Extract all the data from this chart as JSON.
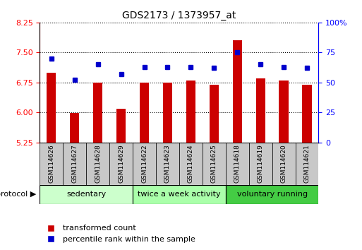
{
  "title": "GDS2173 / 1373957_at",
  "samples": [
    "GSM114626",
    "GSM114627",
    "GSM114628",
    "GSM114629",
    "GSM114622",
    "GSM114623",
    "GSM114624",
    "GSM114625",
    "GSM114618",
    "GSM114619",
    "GSM114620",
    "GSM114621"
  ],
  "transformed_count": [
    7.0,
    5.98,
    6.75,
    6.1,
    6.75,
    6.75,
    6.8,
    6.7,
    7.8,
    6.85,
    6.8,
    6.7
  ],
  "percentile_rank": [
    70,
    52,
    65,
    57,
    63,
    63,
    63,
    62,
    75,
    65,
    63,
    62
  ],
  "groups": [
    {
      "label": "sedentary",
      "start": 0,
      "end": 4,
      "color": "#ccffcc"
    },
    {
      "label": "twice a week activity",
      "start": 4,
      "end": 8,
      "color": "#aaffaa"
    },
    {
      "label": "voluntary running",
      "start": 8,
      "end": 12,
      "color": "#44cc44"
    }
  ],
  "ylim_left": [
    5.25,
    8.25
  ],
  "ylim_right": [
    0,
    100
  ],
  "yticks_left": [
    5.25,
    6.0,
    6.75,
    7.5,
    8.25
  ],
  "yticks_right": [
    0,
    25,
    50,
    75,
    100
  ],
  "bar_color": "#cc0000",
  "dot_color": "#0000cc",
  "bar_bottom": 5.25,
  "legend_items": [
    {
      "label": "transformed count",
      "color": "#cc0000"
    },
    {
      "label": "percentile rank within the sample",
      "color": "#0000cc"
    }
  ],
  "fig_width": 5.13,
  "fig_height": 3.54,
  "dpi": 100
}
